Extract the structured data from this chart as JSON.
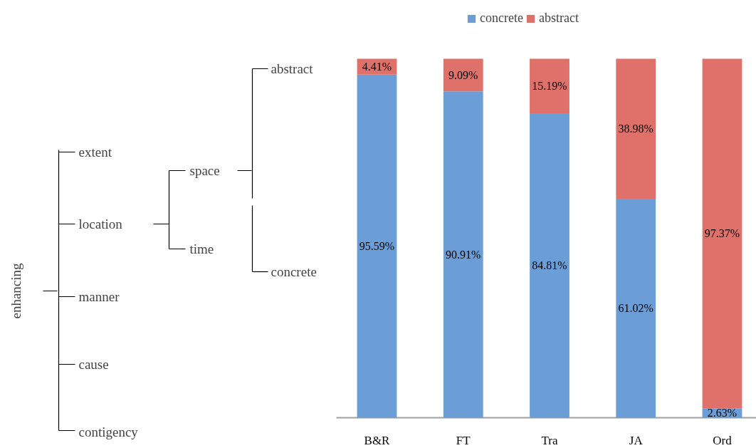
{
  "chart_data": {
    "type": "bar",
    "stacked": true,
    "legend": "top",
    "grid": false,
    "tick_labels": "x",
    "categories": [
      "B&R",
      "FT",
      "Tra",
      "JA",
      "Ord"
    ],
    "series": [
      {
        "name": "concrete",
        "color": "#6b9dd6",
        "values": [
          95.59,
          90.91,
          84.81,
          61.02,
          2.63
        ],
        "value_labels": [
          "95.59%",
          "90.91%",
          "84.81%",
          "61.02%",
          "2.63%"
        ]
      },
      {
        "name": "abstract",
        "color": "#e0706a",
        "values": [
          4.41,
          9.09,
          15.19,
          38.98,
          97.37
        ],
        "value_labels": [
          "4.41%",
          "9.09%",
          "15.19%",
          "38.98%",
          "97.37%"
        ]
      }
    ],
    "annotations": [
      "enhancing",
      "extent",
      "location",
      "manner",
      "cause",
      "contigency",
      "space",
      "time",
      "abstract",
      "concrete"
    ]
  }
}
